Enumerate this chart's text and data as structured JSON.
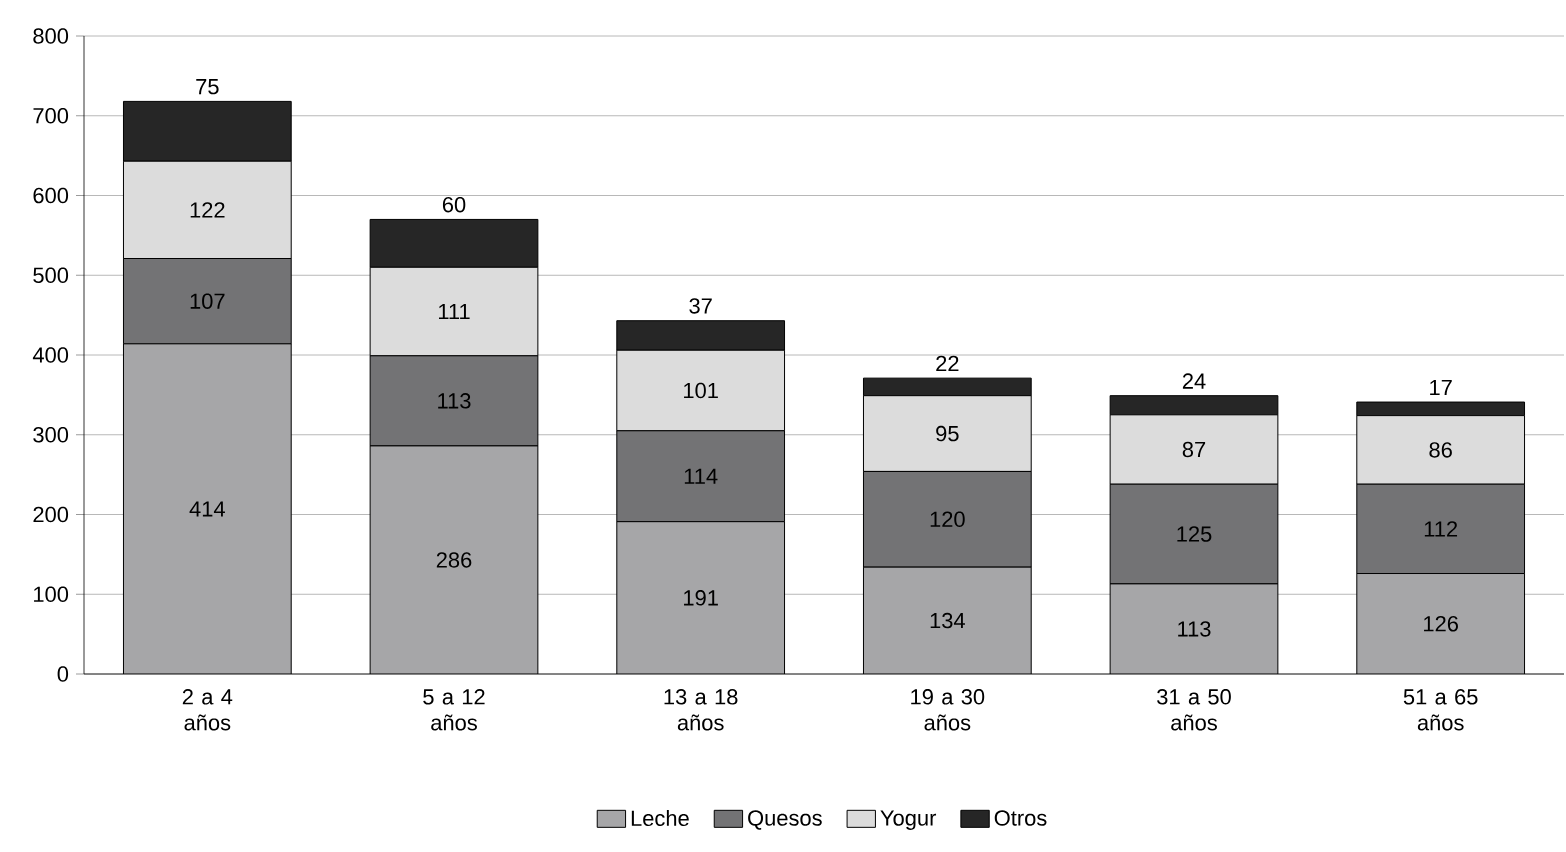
{
  "chart_data": {
    "type": "bar",
    "stacked": true,
    "categories": [
      "2 a 4 años",
      "5 a 12 años",
      "13 a 18 años",
      "19 a 30 años",
      "31 a 50 años",
      "51 a 65 años"
    ],
    "series": [
      {
        "name": "Leche",
        "color": "#a6a6a8",
        "values": [
          414,
          286,
          191,
          134,
          113,
          126
        ]
      },
      {
        "name": "Quesos",
        "color": "#737375",
        "values": [
          107,
          113,
          114,
          120,
          125,
          112
        ]
      },
      {
        "name": "Yogur",
        "color": "#dcdcdc",
        "values": [
          122,
          111,
          101,
          95,
          87,
          86
        ]
      },
      {
        "name": "Otros",
        "color": "#262626",
        "values": [
          75,
          60,
          37,
          22,
          24,
          17
        ]
      }
    ],
    "ylim": [
      0,
      800
    ],
    "yticks": [
      0,
      100,
      200,
      300,
      400,
      500,
      600,
      700,
      800
    ],
    "grid": "y",
    "legend": "bottom",
    "data_labels": true
  }
}
